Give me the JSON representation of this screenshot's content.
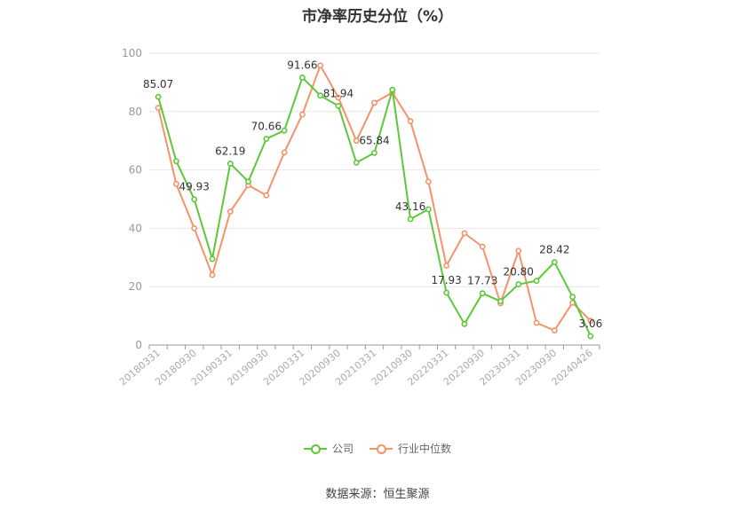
{
  "chart_data": {
    "type": "line",
    "title": "市净率历史分位（%）",
    "x": [
      "20180331",
      "20180630",
      "20180930",
      "20181231",
      "20190331",
      "20190630",
      "20190930",
      "20191231",
      "20200331",
      "20200630",
      "20200930",
      "20201231",
      "20210331",
      "20210630",
      "20210930",
      "20211231",
      "20220331",
      "20220630",
      "20220930",
      "20221231",
      "20230331",
      "20230630",
      "20230930",
      "20231231",
      "20240426"
    ],
    "x_tick_labels": [
      "20180331",
      "20180930",
      "20190331",
      "20190930",
      "20200331",
      "20200930",
      "20210331",
      "20210930",
      "20220331",
      "20220930",
      "20230331",
      "20230930",
      "20240426"
    ],
    "ylim": [
      0,
      100
    ],
    "y_ticks": [
      0,
      20,
      40,
      60,
      80,
      100
    ],
    "grid": true,
    "legend_position": "bottom",
    "series": [
      {
        "name": "公司",
        "color": "#5cc93a",
        "values": [
          85.07,
          63,
          49.93,
          29.5,
          62.19,
          56,
          70.66,
          73.5,
          91.66,
          85.5,
          81.94,
          62.5,
          65.84,
          87.5,
          43.16,
          46.5,
          17.93,
          7.2,
          17.73,
          15,
          20.8,
          22,
          28.42,
          16.5,
          3.06
        ],
        "labels": [
          "85.07",
          null,
          "49.93",
          null,
          "62.19",
          null,
          "70.66",
          null,
          "91.66",
          null,
          "81.94",
          null,
          "65.84",
          null,
          "43.16",
          null,
          "17.93",
          null,
          "17.73",
          null,
          "20.80",
          null,
          "28.42",
          null,
          "3.06"
        ]
      },
      {
        "name": "行业中位数",
        "color": "#f4936a",
        "values": [
          81.3,
          55.2,
          40,
          24,
          45.7,
          54.8,
          51.3,
          66,
          79,
          95.8,
          84.8,
          70,
          83,
          86.5,
          76.7,
          56,
          27.2,
          38.3,
          33.7,
          14.3,
          32.3,
          7.6,
          5,
          14.5,
          8.3
        ]
      }
    ]
  },
  "source_text": "数据来源：恒生聚源"
}
